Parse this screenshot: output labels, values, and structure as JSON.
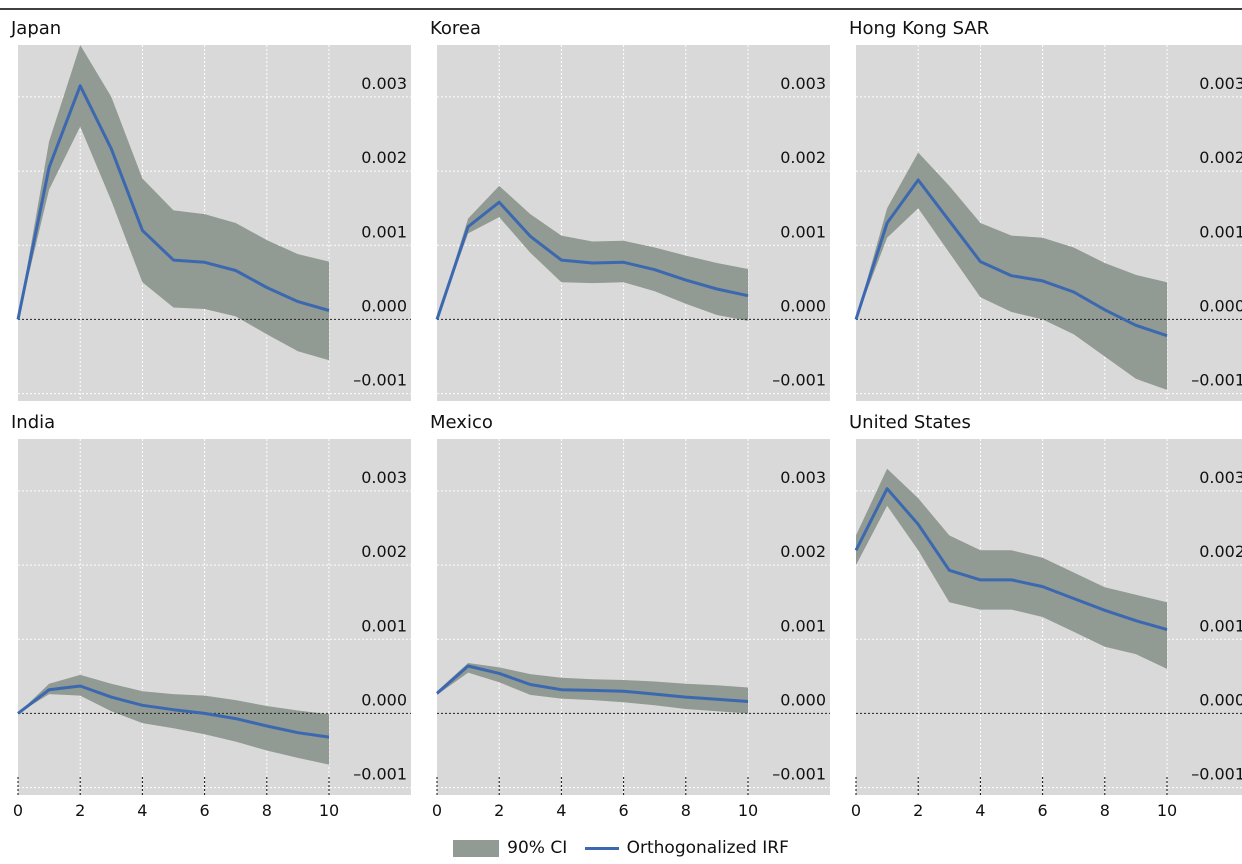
{
  "chart_data": {
    "type": "area",
    "layout": "3x2 small multiples, shared axes",
    "x_ticks": [
      0,
      2,
      4,
      6,
      8,
      10
    ],
    "x": [
      0,
      1,
      2,
      3,
      4,
      5,
      6,
      7,
      8,
      9,
      10
    ],
    "y_ticks": [
      "0.003",
      "0.002",
      "0.001",
      "0.000",
      "–0.001"
    ],
    "y_tick_values": [
      0.003,
      0.002,
      0.001,
      0.0,
      -0.001
    ],
    "ylim": [
      -0.0011,
      0.0037
    ],
    "xlim": [
      0,
      10
    ],
    "grid": true,
    "zero_line": "dotted",
    "legend": {
      "placement": "bottom-center",
      "ci_label": "90% CI",
      "line_label": "Orthogonalized IRF"
    },
    "colors": {
      "background": "#d9d9d9",
      "ci": "#919a93",
      "irf": "#3c68b0",
      "grid": "#ffffff"
    },
    "panels": [
      {
        "title": "Japan",
        "irf": [
          0.0,
          0.00205,
          0.00315,
          0.0023,
          0.0012,
          0.0008,
          0.00077,
          0.00066,
          0.00043,
          0.00024,
          0.00012
        ],
        "lower": [
          0.0,
          0.00175,
          0.0026,
          0.0016,
          0.0005,
          0.00016,
          0.00014,
          4e-05,
          -0.0002,
          -0.00043,
          -0.00055
        ],
        "upper": [
          0.0,
          0.0024,
          0.0037,
          0.003,
          0.0019,
          0.00147,
          0.00142,
          0.0013,
          0.00107,
          0.00088,
          0.00078
        ]
      },
      {
        "title": "Korea",
        "irf": [
          0.0,
          0.00125,
          0.00158,
          0.00112,
          0.0008,
          0.00076,
          0.00077,
          0.00067,
          0.00053,
          0.00041,
          0.00032
        ],
        "lower": [
          0.0,
          0.00116,
          0.00138,
          0.0009,
          0.0005,
          0.00049,
          0.0005,
          0.00038,
          0.00021,
          6e-05,
          -2e-05
        ],
        "upper": [
          0.0,
          0.00136,
          0.0018,
          0.00142,
          0.00113,
          0.00105,
          0.00106,
          0.00097,
          0.00086,
          0.00076,
          0.00068
        ]
      },
      {
        "title": "Hong Kong SAR",
        "irf": [
          0.0,
          0.0013,
          0.00188,
          0.00133,
          0.00078,
          0.00059,
          0.00052,
          0.00037,
          0.00013,
          -8e-05,
          -0.00022
        ],
        "lower": [
          0.0,
          0.0011,
          0.0015,
          0.0009,
          0.0003,
          0.0001,
          0.0,
          -0.0002,
          -0.0005,
          -0.0008,
          -0.00095
        ],
        "upper": [
          0.0,
          0.0015,
          0.00225,
          0.0018,
          0.0013,
          0.00113,
          0.0011,
          0.00097,
          0.00076,
          0.0006,
          0.0005
        ]
      },
      {
        "title": "India",
        "irf": [
          0.0,
          0.00032,
          0.00037,
          0.00022,
          0.00011,
          5e-05,
          0.0,
          -7e-05,
          -0.00017,
          -0.00026,
          -0.00032
        ],
        "lower": [
          0.0,
          0.00026,
          0.00024,
          3e-05,
          -0.00013,
          -0.0002,
          -0.00028,
          -0.00038,
          -0.0005,
          -0.0006,
          -0.00069
        ],
        "upper": [
          0.0,
          0.0004,
          0.00052,
          0.0004,
          0.0003,
          0.00026,
          0.00024,
          0.00018,
          0.0001,
          4e-05,
          -1e-05
        ]
      },
      {
        "title": "Mexico",
        "irf": [
          0.00027,
          0.00064,
          0.00054,
          0.00039,
          0.00032,
          0.00031,
          0.0003,
          0.00026,
          0.00022,
          0.00019,
          0.00016
        ],
        "lower": [
          0.00025,
          0.00055,
          0.00042,
          0.00025,
          0.0002,
          0.00018,
          0.00015,
          0.00011,
          6e-05,
          3e-05,
          0.0
        ],
        "upper": [
          0.0003,
          0.00068,
          0.00062,
          0.00053,
          0.00048,
          0.00046,
          0.00045,
          0.00043,
          0.0004,
          0.00038,
          0.00035
        ]
      },
      {
        "title": "United States",
        "irf": [
          0.0022,
          0.00303,
          0.00255,
          0.00193,
          0.0018,
          0.0018,
          0.00171,
          0.00155,
          0.00139,
          0.00125,
          0.00113
        ],
        "lower": [
          0.002,
          0.0028,
          0.0022,
          0.0015,
          0.0014,
          0.0014,
          0.0013,
          0.0011,
          0.0009,
          0.0008,
          0.0006
        ],
        "upper": [
          0.0024,
          0.0033,
          0.0029,
          0.0024,
          0.0022,
          0.0022,
          0.0021,
          0.0019,
          0.0017,
          0.0016,
          0.0015
        ]
      }
    ]
  }
}
